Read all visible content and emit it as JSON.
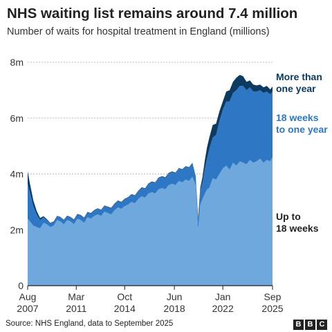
{
  "title": "NHS waiting list remains around 7.4 million",
  "subtitle": "Number of waits for hospital treatment in England (millions)",
  "source": "Source: NHS England, data to September 2025",
  "logo": [
    "B",
    "B",
    "C"
  ],
  "colors": {
    "up_to_18_weeks": "#6fa8dc",
    "18_weeks_to_one_year": "#2e77c4",
    "more_than_one_year": "#0d3a60",
    "gridline": "#bbbbbb",
    "axis": "#222222"
  },
  "chart_data": {
    "type": "area",
    "stacked": true,
    "ylim": [
      0,
      8
    ],
    "y_ticks": [
      0,
      2,
      4,
      6,
      8
    ],
    "y_tick_labels": [
      "0",
      "2m",
      "4m",
      "6m",
      "8m"
    ],
    "grid": true,
    "x_range": [
      2007.58,
      2025.67
    ],
    "x_ticks": [
      {
        "value": 2007.58,
        "label": [
          "Aug",
          "2007"
        ]
      },
      {
        "value": 2011.17,
        "label": [
          "Mar",
          "2011"
        ]
      },
      {
        "value": 2014.75,
        "label": [
          "Oct",
          "2014"
        ]
      },
      {
        "value": 2018.42,
        "label": [
          "Jun",
          "2018"
        ]
      },
      {
        "value": 2022.0,
        "label": [
          "Jan",
          "2022"
        ]
      },
      {
        "value": 2025.67,
        "label": [
          "Sep",
          "2025"
        ]
      }
    ],
    "x": [
      2007.58,
      2007.75,
      2008.0,
      2008.25,
      2008.5,
      2008.75,
      2009.0,
      2009.25,
      2009.5,
      2009.75,
      2010.0,
      2010.25,
      2010.5,
      2010.75,
      2011.0,
      2011.25,
      2011.5,
      2011.75,
      2012.0,
      2012.25,
      2012.5,
      2012.75,
      2013.0,
      2013.25,
      2013.5,
      2013.75,
      2014.0,
      2014.25,
      2014.5,
      2014.75,
      2015.0,
      2015.25,
      2015.5,
      2015.75,
      2016.0,
      2016.25,
      2016.5,
      2016.75,
      2017.0,
      2017.25,
      2017.5,
      2017.75,
      2018.0,
      2018.25,
      2018.5,
      2018.75,
      2019.0,
      2019.25,
      2019.5,
      2019.75,
      2020.0,
      2020.17,
      2020.33,
      2020.5,
      2020.67,
      2020.83,
      2021.0,
      2021.25,
      2021.5,
      2021.75,
      2022.0,
      2022.25,
      2022.5,
      2022.75,
      2023.0,
      2023.25,
      2023.5,
      2023.75,
      2024.0,
      2024.25,
      2024.5,
      2024.75,
      2025.0,
      2025.25,
      2025.5,
      2025.67
    ],
    "series": [
      {
        "name": "Up to 18 weeks",
        "values": [
          2.4,
          2.3,
          2.15,
          2.1,
          2.05,
          2.25,
          2.2,
          2.1,
          2.15,
          2.35,
          2.3,
          2.2,
          2.35,
          2.3,
          2.2,
          2.4,
          2.35,
          2.25,
          2.45,
          2.4,
          2.5,
          2.55,
          2.5,
          2.65,
          2.6,
          2.55,
          2.7,
          2.8,
          2.75,
          2.85,
          2.9,
          3.0,
          2.95,
          3.1,
          3.2,
          3.15,
          3.3,
          3.35,
          3.3,
          3.45,
          3.5,
          3.45,
          3.6,
          3.65,
          3.6,
          3.75,
          3.7,
          3.8,
          3.75,
          3.9,
          3.6,
          2.0,
          2.9,
          3.1,
          3.3,
          3.45,
          3.5,
          3.85,
          3.8,
          4.0,
          4.2,
          4.3,
          4.15,
          4.4,
          4.3,
          4.45,
          4.4,
          4.35,
          4.5,
          4.4,
          4.45,
          4.55,
          4.4,
          4.5,
          4.45,
          4.6
        ]
      },
      {
        "name": "18 weeks to one year",
        "values": [
          1.25,
          1.05,
          0.7,
          0.45,
          0.3,
          0.2,
          0.15,
          0.13,
          0.13,
          0.13,
          0.14,
          0.14,
          0.14,
          0.14,
          0.15,
          0.15,
          0.16,
          0.17,
          0.17,
          0.18,
          0.19,
          0.2,
          0.2,
          0.2,
          0.21,
          0.22,
          0.22,
          0.23,
          0.23,
          0.24,
          0.25,
          0.26,
          0.27,
          0.28,
          0.3,
          0.32,
          0.34,
          0.36,
          0.38,
          0.4,
          0.4,
          0.41,
          0.42,
          0.42,
          0.43,
          0.44,
          0.45,
          0.46,
          0.47,
          0.48,
          0.3,
          0.4,
          0.5,
          0.6,
          0.9,
          1.1,
          1.4,
          1.45,
          1.6,
          1.9,
          2.1,
          2.3,
          2.45,
          2.5,
          2.7,
          2.7,
          2.75,
          2.65,
          2.6,
          2.55,
          2.5,
          2.45,
          2.5,
          2.45,
          2.4,
          2.35
        ]
      },
      {
        "name": "More than one year",
        "values": [
          0.45,
          0.3,
          0.2,
          0.12,
          0.07,
          0.04,
          0.03,
          0.02,
          0.02,
          0.02,
          0.02,
          0.02,
          0.02,
          0.02,
          0.02,
          0.02,
          0.02,
          0.02,
          0.02,
          0.02,
          0.02,
          0.02,
          0.02,
          0.02,
          0.02,
          0.02,
          0.02,
          0.02,
          0.02,
          0.02,
          0.02,
          0.02,
          0.02,
          0.02,
          0.02,
          0.02,
          0.02,
          0.02,
          0.02,
          0.02,
          0.02,
          0.02,
          0.02,
          0.02,
          0.02,
          0.02,
          0.02,
          0.02,
          0.02,
          0.02,
          0.02,
          0.05,
          0.1,
          0.2,
          0.3,
          0.4,
          0.4,
          0.45,
          0.4,
          0.35,
          0.3,
          0.35,
          0.4,
          0.4,
          0.45,
          0.4,
          0.35,
          0.3,
          0.25,
          0.25,
          0.22,
          0.2,
          0.2,
          0.2,
          0.18,
          0.18
        ]
      }
    ],
    "series_labels": [
      {
        "series": "More than one year",
        "lines": [
          "More than",
          "one year"
        ]
      },
      {
        "series": "18 weeks to one year",
        "lines": [
          "18 weeks",
          "to one year"
        ]
      },
      {
        "series": "Up to 18 weeks",
        "lines": [
          "Up to",
          "18 weeks"
        ]
      }
    ]
  }
}
